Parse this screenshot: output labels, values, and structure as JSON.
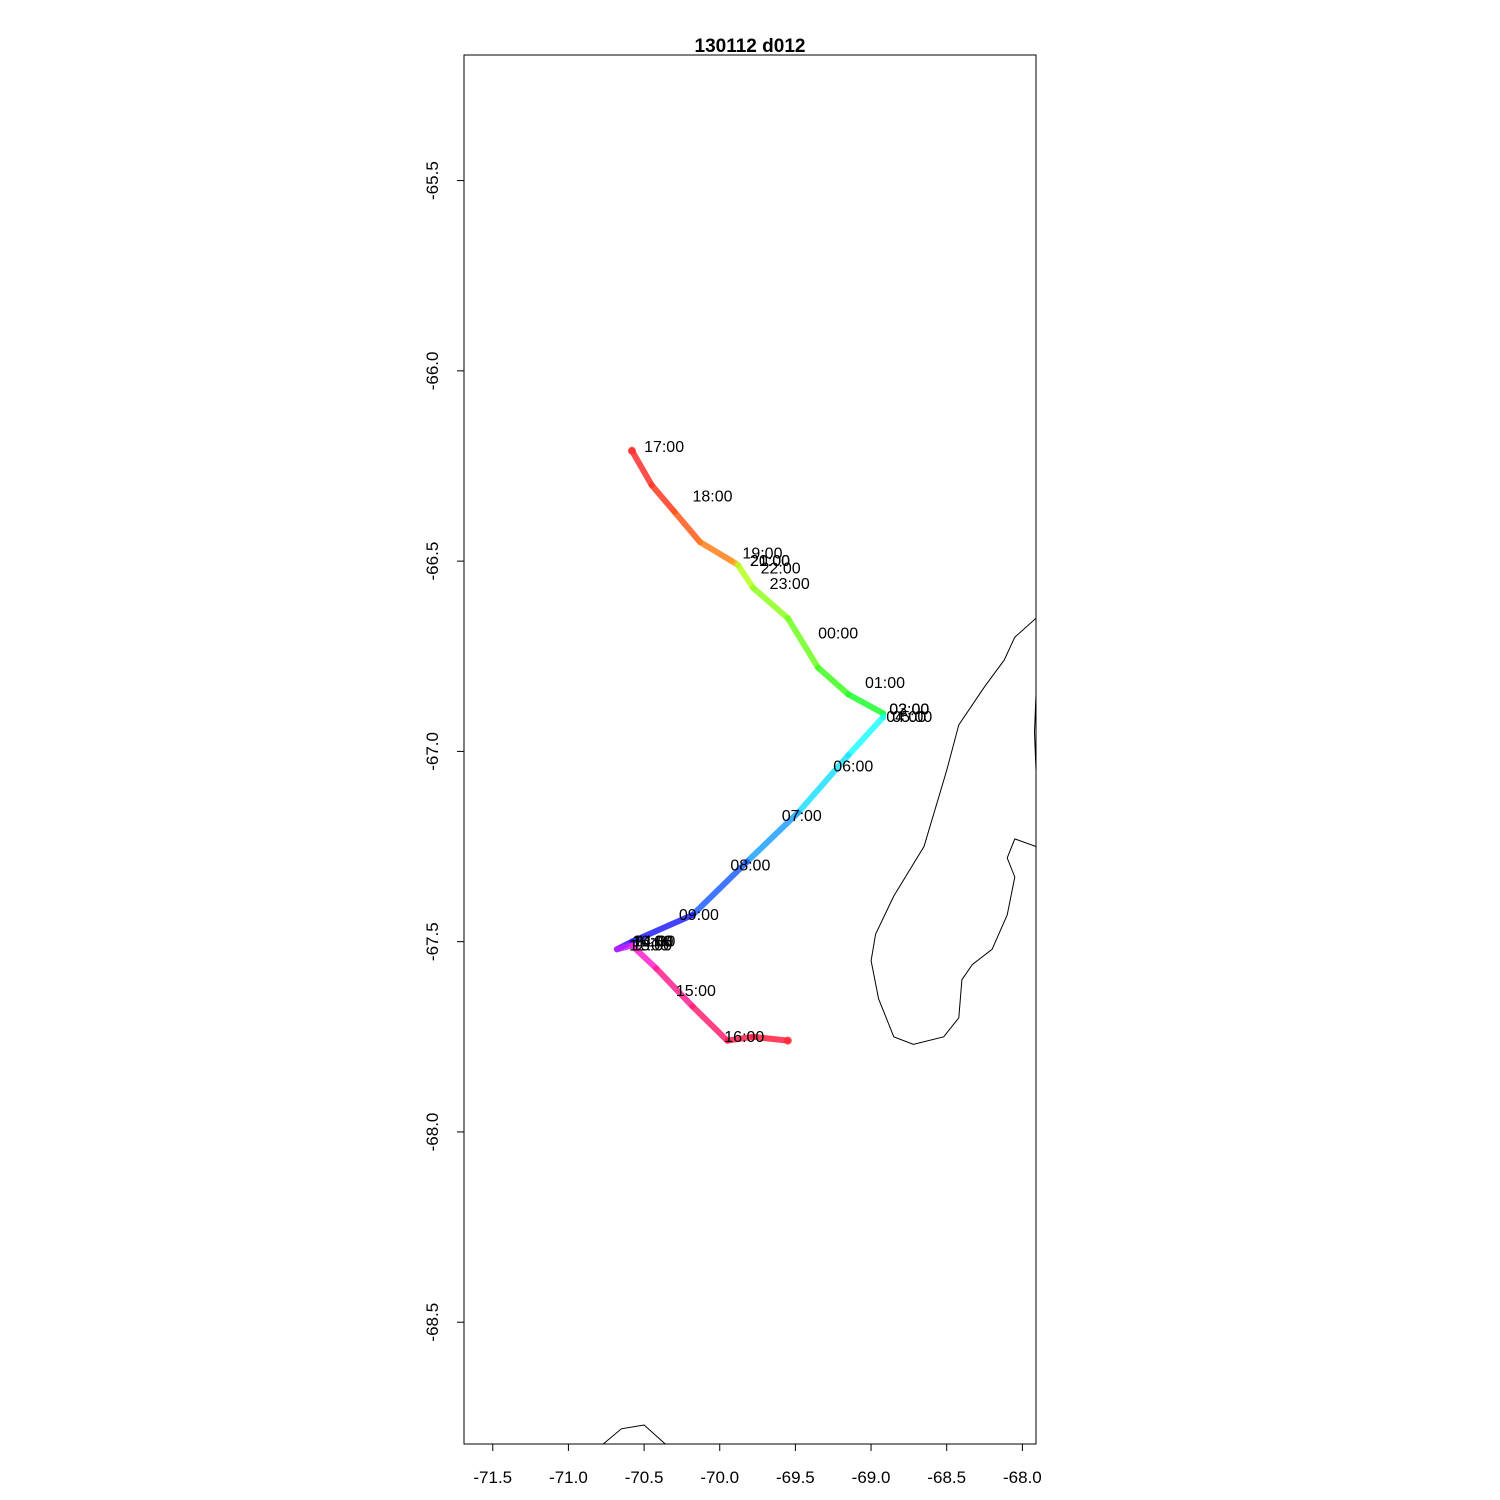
{
  "chart_data": {
    "type": "line",
    "title": "130112   d012",
    "xlabel": "",
    "ylabel": "",
    "xlim": [
      -71.69,
      -67.91
    ],
    "ylim": [
      -68.82,
      -65.17
    ],
    "x_ticks": [
      -71.5,
      -71.0,
      -70.5,
      -70.0,
      -69.5,
      -69.0,
      -68.5,
      -68.0
    ],
    "x_tick_labels": [
      "-71.5",
      "-71.0",
      "-70.5",
      "-70.0",
      "-69.5",
      "-69.0",
      "-68.5",
      "-68.0"
    ],
    "y_ticks": [
      -65.5,
      -66.0,
      -66.5,
      -67.0,
      -67.5,
      -68.0,
      -68.5
    ],
    "y_tick_labels": [
      "-65.5",
      "-66.0",
      "-66.5",
      "-67.0",
      "-67.5",
      "-68.0",
      "-68.5"
    ],
    "track": [
      {
        "lon": -70.58,
        "lat": -66.21,
        "color": "#ff3030"
      },
      {
        "lon": -70.45,
        "lat": -66.3,
        "color": "#ff3a20"
      },
      {
        "lon": -70.3,
        "lat": -66.37,
        "color": "#ff5a1a"
      },
      {
        "lon": -70.13,
        "lat": -66.45,
        "color": "#ff7f1a"
      },
      {
        "lon": -69.92,
        "lat": -66.5,
        "color": "#ffa020"
      },
      {
        "lon": -69.88,
        "lat": -66.51,
        "color": "#b8ff20"
      },
      {
        "lon": -69.78,
        "lat": -66.57,
        "color": "#90ff20"
      },
      {
        "lon": -69.55,
        "lat": -66.65,
        "color": "#70ff20"
      },
      {
        "lon": -69.35,
        "lat": -66.78,
        "color": "#40ff20"
      },
      {
        "lon": -69.15,
        "lat": -66.85,
        "color": "#20ff30"
      },
      {
        "lon": -68.92,
        "lat": -66.9,
        "color": "#20ff60"
      },
      {
        "lon": -68.92,
        "lat": -66.91,
        "color": "#20ffff"
      },
      {
        "lon": -69.15,
        "lat": -67.01,
        "color": "#20e0ff"
      },
      {
        "lon": -69.48,
        "lat": -67.16,
        "color": "#20a0ff"
      },
      {
        "lon": -69.82,
        "lat": -67.29,
        "color": "#2060ff"
      },
      {
        "lon": -70.18,
        "lat": -67.43,
        "color": "#2020ff"
      },
      {
        "lon": -70.58,
        "lat": -67.5,
        "color": "#4010ff"
      },
      {
        "lon": -70.68,
        "lat": -67.52,
        "color": "#c020ff"
      },
      {
        "lon": -70.58,
        "lat": -67.51,
        "color": "#ff20d0"
      },
      {
        "lon": -70.42,
        "lat": -67.57,
        "color": "#ff2090"
      },
      {
        "lon": -70.18,
        "lat": -67.67,
        "color": "#ff2070"
      },
      {
        "lon": -69.95,
        "lat": -67.76,
        "color": "#ff2050"
      },
      {
        "lon": -69.78,
        "lat": -67.75,
        "color": "#ff2040"
      },
      {
        "lon": -69.55,
        "lat": -67.76,
        "color": "#ff2a3a"
      }
    ],
    "time_labels": [
      {
        "text": "17:00",
        "lon": -70.5,
        "lat": -66.2
      },
      {
        "text": "18:00",
        "lon": -70.18,
        "lat": -66.33
      },
      {
        "text": "19:00",
        "lon": -69.85,
        "lat": -66.48
      },
      {
        "text": "20:00",
        "lon": -69.8,
        "lat": -66.5
      },
      {
        "text": "21:00",
        "lon": -69.8,
        "lat": -66.5
      },
      {
        "text": "22:00",
        "lon": -69.73,
        "lat": -66.52
      },
      {
        "text": "23:00",
        "lon": -69.67,
        "lat": -66.56
      },
      {
        "text": "00:00",
        "lon": -69.35,
        "lat": -66.69
      },
      {
        "text": "01:00",
        "lon": -69.04,
        "lat": -66.82
      },
      {
        "text": "02:00",
        "lon": -68.88,
        "lat": -66.89
      },
      {
        "text": "03:00",
        "lon": -68.88,
        "lat": -66.89
      },
      {
        "text": "04:00",
        "lon": -68.9,
        "lat": -66.91
      },
      {
        "text": "05:00",
        "lon": -68.86,
        "lat": -66.91
      },
      {
        "text": "06:00",
        "lon": -69.25,
        "lat": -67.04
      },
      {
        "text": "07:00",
        "lon": -69.59,
        "lat": -67.17
      },
      {
        "text": "08:00",
        "lon": -69.93,
        "lat": -67.3
      },
      {
        "text": "09:00",
        "lon": -70.27,
        "lat": -67.43
      },
      {
        "text": "10:00",
        "lon": -70.58,
        "lat": -67.5
      },
      {
        "text": "11:00",
        "lon": -70.55,
        "lat": -67.5
      },
      {
        "text": "12:00",
        "lon": -70.6,
        "lat": -67.51
      },
      {
        "text": "13:00",
        "lon": -70.58,
        "lat": -67.51
      },
      {
        "text": "14:00",
        "lon": -70.57,
        "lat": -67.5
      },
      {
        "text": "15:00",
        "lon": -70.29,
        "lat": -67.63
      },
      {
        "text": "16:00",
        "lon": -69.97,
        "lat": -67.75
      }
    ],
    "coastlines": [
      [
        [
          -67.91,
          -66.65
        ],
        [
          -68.05,
          -66.7
        ],
        [
          -68.12,
          -66.76
        ],
        [
          -68.25,
          -66.83
        ],
        [
          -68.42,
          -66.93
        ],
        [
          -68.5,
          -67.05
        ],
        [
          -68.65,
          -67.25
        ],
        [
          -68.85,
          -67.38
        ],
        [
          -68.97,
          -67.48
        ],
        [
          -69.0,
          -67.55
        ],
        [
          -68.95,
          -67.65
        ],
        [
          -68.85,
          -67.75
        ],
        [
          -68.72,
          -67.77
        ],
        [
          -68.52,
          -67.75
        ],
        [
          -68.42,
          -67.7
        ],
        [
          -68.4,
          -67.6
        ],
        [
          -68.33,
          -67.56
        ],
        [
          -68.2,
          -67.52
        ],
        [
          -68.1,
          -67.43
        ],
        [
          -68.05,
          -67.33
        ],
        [
          -68.1,
          -67.28
        ],
        [
          -68.05,
          -67.23
        ],
        [
          -67.91,
          -67.25
        ]
      ],
      [
        [
          -67.91,
          -66.85
        ],
        [
          -67.92,
          -66.95
        ],
        [
          -67.91,
          -67.05
        ]
      ],
      [
        [
          -70.77,
          -68.82
        ],
        [
          -70.65,
          -68.78
        ],
        [
          -70.5,
          -68.77
        ],
        [
          -70.36,
          -68.82
        ]
      ]
    ]
  }
}
